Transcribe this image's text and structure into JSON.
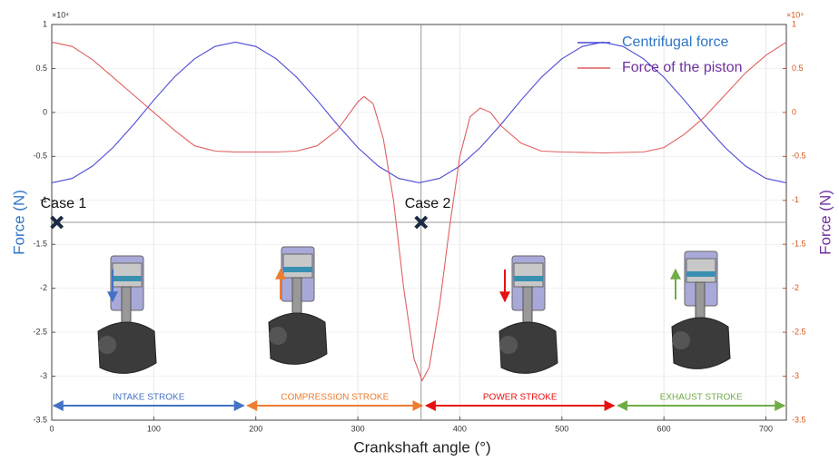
{
  "chart_data": {
    "type": "line",
    "x_label": "Crankshaft angle (°)",
    "y_label": "Force (N)",
    "y2_label": "Force (N)",
    "exponent_label": "×10⁴",
    "y2_exponent_label": "×10⁴",
    "xlim": [
      0,
      720
    ],
    "xticks": [
      0,
      100,
      200,
      300,
      400,
      500,
      600,
      700
    ],
    "ylim": [
      -3.5,
      1
    ],
    "yticks": [
      -3.5,
      -3,
      -2.5,
      -2,
      -1.5,
      -1,
      -0.5,
      0,
      0.5,
      1
    ],
    "y2lim": [
      -3.5,
      1
    ],
    "y2ticks": [
      -3.5,
      -3,
      -2.5,
      -2,
      -1.5,
      -1,
      -0.5,
      0,
      0.5,
      1
    ],
    "grid": true,
    "legend": "upper right",
    "series": [
      {
        "name": "Centrifugal force",
        "color": "#4a4ad8",
        "text_color": "#2e75c6",
        "x": [
          0,
          20,
          40,
          60,
          80,
          100,
          120,
          140,
          160,
          180,
          200,
          220,
          240,
          260,
          280,
          300,
          320,
          340,
          360,
          380,
          400,
          420,
          440,
          460,
          480,
          500,
          520,
          540,
          560,
          580,
          600,
          620,
          640,
          660,
          680,
          700,
          720
        ],
        "values": [
          -0.8,
          -0.75,
          -0.61,
          -0.4,
          -0.14,
          0.14,
          0.4,
          0.61,
          0.75,
          0.8,
          0.75,
          0.61,
          0.4,
          0.14,
          -0.14,
          -0.4,
          -0.61,
          -0.75,
          -0.8,
          -0.75,
          -0.61,
          -0.4,
          -0.14,
          0.14,
          0.4,
          0.61,
          0.75,
          0.8,
          0.75,
          0.61,
          0.4,
          0.14,
          -0.14,
          -0.4,
          -0.61,
          -0.75,
          -0.8
        ]
      },
      {
        "name": "Force of the piston",
        "color": "#e06060",
        "text_color": "#7030a0",
        "axis": "y2",
        "x": [
          0,
          20,
          40,
          60,
          80,
          100,
          120,
          140,
          160,
          180,
          200,
          220,
          240,
          260,
          280,
          300,
          306,
          315,
          325,
          335,
          345,
          355,
          363,
          370,
          380,
          390,
          400,
          410,
          420,
          430,
          440,
          460,
          480,
          500,
          540,
          580,
          600,
          620,
          640,
          660,
          680,
          700,
          720
        ],
        "values": [
          0.8,
          0.75,
          0.6,
          0.4,
          0.2,
          0.0,
          -0.2,
          -0.38,
          -0.44,
          -0.45,
          -0.45,
          -0.45,
          -0.44,
          -0.38,
          -0.2,
          0.12,
          0.18,
          0.1,
          -0.3,
          -1.0,
          -2.0,
          -2.8,
          -3.05,
          -2.9,
          -2.2,
          -1.3,
          -0.5,
          -0.05,
          0.05,
          0.0,
          -0.15,
          -0.35,
          -0.44,
          -0.45,
          -0.46,
          -0.45,
          -0.4,
          -0.25,
          -0.05,
          0.2,
          0.45,
          0.65,
          0.8
        ]
      }
    ],
    "cases": [
      {
        "label": "Case 1",
        "x": 5,
        "y": -1.25
      },
      {
        "label": "Case 2",
        "x": 362,
        "y": -1.25
      }
    ],
    "strokes": [
      {
        "label": "INTAKE STROKE",
        "start": 0,
        "end": 190,
        "color": "#4472c4"
      },
      {
        "label": "COMPRESSION STROKE",
        "start": 190,
        "end": 365,
        "color": "#ed7d31"
      },
      {
        "label": "POWER STROKE",
        "start": 365,
        "end": 553,
        "color": "#e81010"
      },
      {
        "label": "EXHAUST STROKE",
        "start": 553,
        "end": 720,
        "color": "#70ad47"
      }
    ]
  }
}
